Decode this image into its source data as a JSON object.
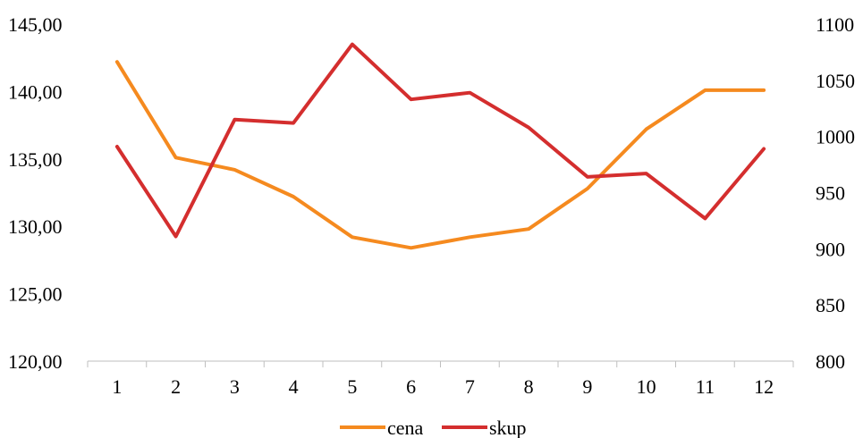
{
  "chart_data": {
    "type": "line",
    "title": "",
    "xlabel": "",
    "ylabel": "",
    "x": [
      "1",
      "2",
      "3",
      "4",
      "5",
      "6",
      "7",
      "8",
      "9",
      "10",
      "11",
      "12"
    ],
    "y_left": {
      "lim": [
        120,
        145
      ],
      "ticks": [
        120,
        125,
        130,
        135,
        140,
        145
      ],
      "tick_labels": [
        "120,00",
        "125,00",
        "130,00",
        "135,00",
        "140,00",
        "145,00"
      ]
    },
    "y_right": {
      "lim": [
        800,
        1100
      ],
      "ticks": [
        800,
        850,
        900,
        950,
        1000,
        1050,
        1100
      ],
      "tick_labels": [
        "800",
        "850",
        "900",
        "950",
        "1000",
        "1050",
        "1100"
      ]
    },
    "series": [
      {
        "name": "cena",
        "axis": "left",
        "color": "#F58A1F",
        "values": [
          142.2,
          135.1,
          134.2,
          132.2,
          129.2,
          128.4,
          129.2,
          129.8,
          132.8,
          137.2,
          140.1,
          140.1
        ]
      },
      {
        "name": "skup",
        "axis": "right",
        "color": "#D42E2E",
        "values": [
          991,
          911,
          1015,
          1012,
          1082,
          1033,
          1039,
          1008,
          964,
          967,
          927,
          989
        ]
      }
    ],
    "grid": false,
    "legend": {
      "placement": "bottom-center"
    }
  }
}
